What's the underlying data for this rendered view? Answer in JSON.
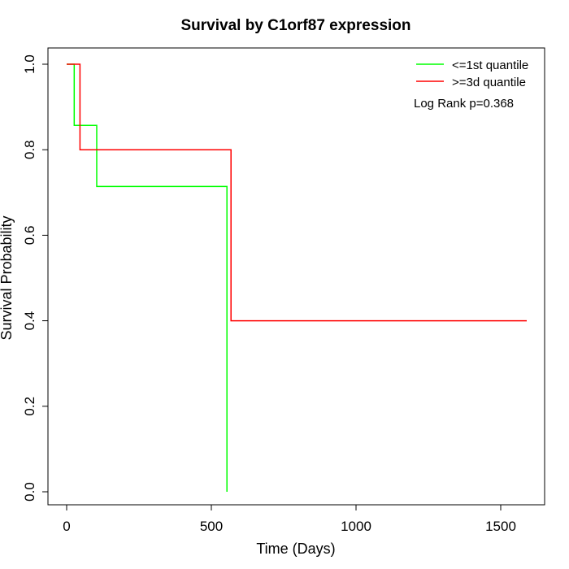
{
  "chart_data": {
    "type": "line",
    "subtype": "kaplan-meier-step",
    "title": "Survival by C1orf87 expression",
    "xlabel": "Time (Days)",
    "ylabel": "Survival Probability",
    "xlim": [
      0,
      1600
    ],
    "ylim": [
      0,
      1.0
    ],
    "xticks": [
      0,
      500,
      1000,
      1500
    ],
    "yticks": [
      0.0,
      0.2,
      0.4,
      0.6,
      0.8,
      1.0
    ],
    "xtick_labels": [
      "0",
      "500",
      "1000",
      "1500"
    ],
    "ytick_labels": [
      "0.0",
      "0.2",
      "0.4",
      "0.6",
      "0.8",
      "1.0"
    ],
    "grid": false,
    "legend_position": "top-right",
    "annotation": "Log Rank p=0.368",
    "series": [
      {
        "name": "<=1st quantile",
        "color": "#00ff00",
        "x": [
          0,
          26,
          26,
          104,
          104,
          554,
          554
        ],
        "y": [
          1.0,
          1.0,
          0.857,
          0.857,
          0.714,
          0.714,
          0.0
        ]
      },
      {
        "name": ">=3d quantile",
        "color": "#ff0000",
        "x": [
          0,
          46,
          46,
          568,
          568,
          1590
        ],
        "y": [
          1.0,
          1.0,
          0.8,
          0.8,
          0.4,
          0.4
        ]
      }
    ]
  }
}
